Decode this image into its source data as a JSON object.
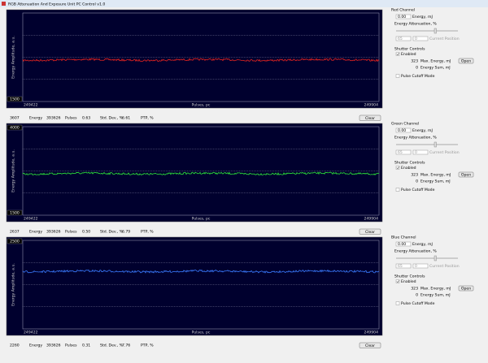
{
  "window": {
    "title": "RGB Attenuation And Exposure Unit PC Control v1.0"
  },
  "panels": [
    {
      "chart": {
        "y_label": "Energy Amplitude, a.u.",
        "y_bottom": "1500",
        "x_start": "249422",
        "x_end": "249904",
        "x_label": "Pulses, pc",
        "trace_color": "#e8231f"
      },
      "stats": {
        "count": "3607",
        "energy_label": "Energy",
        "pulses": "393626",
        "pulses_label": "Pulses",
        "std_dev": "0.63",
        "std_dev_label": "Std. Dev., %",
        "ptp": "6.61",
        "ptp_label": "PTP, %",
        "clear_button": "Clear"
      },
      "controls": {
        "channel": "Red Channel",
        "energy": "0.00",
        "energy_unit": "Energy, mJ",
        "attenuation_label": "Energy Attenuation, %",
        "set_position": "65",
        "current_position": "0",
        "current_position_label": "Current Position",
        "shutter_label": "Shutter Controls",
        "enabled_label": "Enabled",
        "max_energy": "323",
        "max_energy_label": "Max. Energy, mJ",
        "energy_sum": "0",
        "energy_sum_label": "Energy Sum, mJ",
        "open_button": "Open",
        "cutoff_label": "Pulse Cutoff Mode"
      }
    },
    {
      "chart": {
        "y_label": "Energy Amplitude, a.u.",
        "y_top": "4000",
        "y_bottom": "1500",
        "x_start": "249422",
        "x_end": "249904",
        "x_label": "Pulses, pc",
        "trace_color": "#2ee83a"
      },
      "stats": {
        "count": "2637",
        "energy_label": "Energy",
        "pulses": "393626",
        "pulses_label": "Pulses",
        "std_dev": "0.50",
        "std_dev_label": "Std. Dev., %",
        "ptp": "6.79",
        "ptp_label": "PTP, %",
        "clear_button": "Clear"
      },
      "controls": {
        "channel": "Green Channel",
        "energy": "0.00",
        "energy_unit": "Energy, mJ",
        "attenuation_label": "Energy Attenuation, %",
        "set_position": "65",
        "current_position": "0",
        "current_position_label": "Current Position",
        "shutter_label": "Shutter Controls",
        "enabled_label": "Enabled",
        "max_energy": "323",
        "max_energy_label": "Max. Energy, mJ",
        "energy_sum": "0",
        "energy_sum_label": "Energy Sum, mJ",
        "open_button": "Open",
        "cutoff_label": "Pulse Cutoff Mode"
      }
    },
    {
      "chart": {
        "y_label": "Energy Amplitude, a.u.",
        "y_top": "2500",
        "x_start": "249422",
        "x_end": "249904",
        "x_label": "Pulses, pc",
        "trace_color": "#3a7bff"
      },
      "stats": {
        "count": "2260",
        "energy_label": "Energy",
        "pulses": "393626",
        "pulses_label": "Pulses",
        "std_dev": "0.31",
        "std_dev_label": "Std. Dev., %",
        "ptp": "7.76",
        "ptp_label": "PTP, %",
        "clear_button": "Clear"
      },
      "controls": {
        "channel": "Blue Channel",
        "energy": "0.00",
        "energy_unit": "Energy, mJ",
        "attenuation_label": "Energy Attenuation, %",
        "set_position": "65",
        "current_position": "0",
        "current_position_label": "Current Position",
        "shutter_label": "Shutter Controls",
        "enabled_label": "Enabled",
        "max_energy": "323",
        "max_energy_label": "Max. Energy, mJ",
        "energy_sum": "0",
        "energy_sum_label": "Energy Sum, mJ",
        "open_button": "Open",
        "cutoff_label": "Pulse Cutoff Mode"
      }
    }
  ]
}
